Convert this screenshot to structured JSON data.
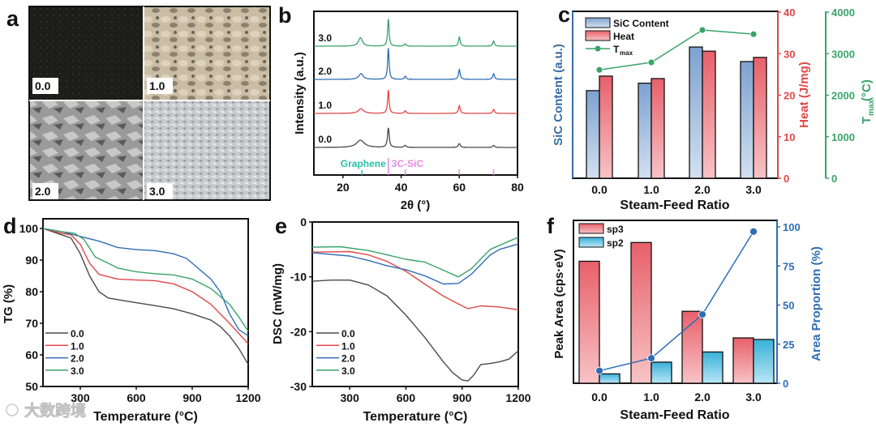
{
  "panel_labels": [
    "a",
    "b",
    "c",
    "d",
    "e",
    "f"
  ],
  "photos": {
    "labels": [
      "0.0",
      "1.0",
      "2.0",
      "3.0"
    ]
  },
  "watermark": {
    "text": "大数跨境"
  },
  "colors": {
    "s0": "#4a4a4a",
    "s1": "#e04848",
    "s2": "#2f6db5",
    "s3": "#3aa36a",
    "blue_axis": "#3a6ea5",
    "red_axis": "#e04848",
    "green_axis": "#3aa36a",
    "cyan": "#2ab0c8",
    "teal": "#2bbfa8",
    "pink": "#e58ae0"
  },
  "chart_data": [
    {
      "id": "b",
      "type": "line",
      "xlabel": "2θ (°)",
      "ylabel": "Intensity (a.u.)",
      "xlim": [
        10,
        80
      ],
      "xticks": [
        "20",
        "40",
        "60",
        "80"
      ],
      "reference": {
        "graphene_label": "Graphene",
        "sic_label": "3C-SiC",
        "graphene_peaks": [
          26.5
        ],
        "sic_peaks": [
          35.6,
          41.4,
          60.0,
          71.8
        ]
      },
      "series": [
        {
          "name": "0.0",
          "peaks": [
            [
              26.0,
              0.28,
              1.6
            ],
            [
              35.6,
              0.75,
              0.35
            ],
            [
              41.4,
              0.08,
              0.4
            ],
            [
              60.0,
              0.15,
              0.4
            ],
            [
              71.8,
              0.08,
              0.4
            ]
          ]
        },
        {
          "name": "1.0",
          "peaks": [
            [
              26.2,
              0.18,
              1.1
            ],
            [
              35.6,
              0.9,
              0.3
            ],
            [
              41.4,
              0.1,
              0.35
            ],
            [
              60.0,
              0.3,
              0.35
            ],
            [
              71.8,
              0.16,
              0.35
            ]
          ]
        },
        {
          "name": "2.0",
          "peaks": [
            [
              26.2,
              0.22,
              0.9
            ],
            [
              35.6,
              1.2,
              0.3
            ],
            [
              41.4,
              0.12,
              0.35
            ],
            [
              60.0,
              0.38,
              0.35
            ],
            [
              71.8,
              0.22,
              0.35
            ]
          ]
        },
        {
          "name": "3.0",
          "peaks": [
            [
              26.0,
              0.33,
              0.8
            ],
            [
              35.6,
              1.05,
              0.3
            ],
            [
              41.4,
              0.09,
              0.35
            ],
            [
              60.0,
              0.35,
              0.35
            ],
            [
              71.8,
              0.2,
              0.35
            ]
          ]
        }
      ]
    },
    {
      "id": "c",
      "type": "bar",
      "categories": [
        "0.0",
        "1.0",
        "2.0",
        "3.0"
      ],
      "xlabel": "Steam-Feed Ratio",
      "ylabel_left": "SiC Content (a.u.)",
      "ylabel_right": "Heat (J/mg)",
      "ylabel_right2": "T",
      "ylabel_right2_sub": "max",
      "ylabel_right2_unit": " (°C)",
      "heat_ylim": [
        0,
        40
      ],
      "heat_ticks": [
        "0",
        "10",
        "20",
        "30",
        "40"
      ],
      "tmax_ylim": [
        0,
        4000
      ],
      "tmax_ticks": [
        "0",
        "1000",
        "2000",
        "3000",
        "4000"
      ],
      "series": [
        {
          "name": "SiC Content",
          "values": [
            21.1,
            22.9,
            31.6,
            28.1
          ]
        },
        {
          "name": "Heat",
          "values": [
            24.6,
            24.0,
            30.6,
            29.1
          ]
        },
        {
          "name": "T",
          "sub": "max",
          "values": [
            2610,
            2790,
            3570,
            3470
          ]
        }
      ],
      "legend": "top-left"
    },
    {
      "id": "d",
      "type": "line",
      "xlabel": "Temperature (°C)",
      "ylabel": "TG (%)",
      "xlim": [
        100,
        1200
      ],
      "ylim": [
        50,
        100
      ],
      "xticks": [
        "300",
        "600",
        "900",
        "1200"
      ],
      "yticks": [
        "50",
        "60",
        "70",
        "80",
        "90",
        "100"
      ],
      "legend": "bottom-left",
      "series": [
        {
          "name": "0.0",
          "points": [
            [
              100,
              100
            ],
            [
              200,
              98
            ],
            [
              250,
              97
            ],
            [
              300,
              92
            ],
            [
              350,
              85
            ],
            [
              400,
              80
            ],
            [
              450,
              78
            ],
            [
              500,
              77.5
            ],
            [
              600,
              76.5
            ],
            [
              700,
              75.6
            ],
            [
              800,
              74.6
            ],
            [
              900,
              73
            ],
            [
              1000,
              71
            ],
            [
              1050,
              69
            ],
            [
              1100,
              66
            ],
            [
              1150,
              62
            ],
            [
              1200,
              57
            ]
          ]
        },
        {
          "name": "1.0",
          "points": [
            [
              100,
              100
            ],
            [
              200,
              98.5
            ],
            [
              250,
              98
            ],
            [
              300,
              95
            ],
            [
              350,
              89
            ],
            [
              400,
              85.5
            ],
            [
              500,
              84
            ],
            [
              600,
              83.7
            ],
            [
              700,
              83.5
            ],
            [
              800,
              82.5
            ],
            [
              900,
              80
            ],
            [
              1000,
              76
            ],
            [
              1100,
              70
            ],
            [
              1200,
              63.5
            ]
          ]
        },
        {
          "name": "2.0",
          "points": [
            [
              100,
              100
            ],
            [
              200,
              99
            ],
            [
              300,
              97.5
            ],
            [
              400,
              96
            ],
            [
              500,
              94
            ],
            [
              600,
              93.3
            ],
            [
              700,
              93
            ],
            [
              800,
              92
            ],
            [
              870,
              90.5
            ],
            [
              900,
              89
            ],
            [
              1000,
              84
            ],
            [
              1050,
              80
            ],
            [
              1100,
              73
            ],
            [
              1150,
              68
            ],
            [
              1200,
              66
            ]
          ]
        },
        {
          "name": "3.0",
          "points": [
            [
              100,
              100
            ],
            [
              200,
              99
            ],
            [
              270,
              98.5
            ],
            [
              320,
              96.5
            ],
            [
              380,
              91
            ],
            [
              450,
              89
            ],
            [
              500,
              87.5
            ],
            [
              600,
              86.3
            ],
            [
              700,
              85.7
            ],
            [
              800,
              85.3
            ],
            [
              900,
              84
            ],
            [
              1000,
              81
            ],
            [
              1050,
              78.5
            ],
            [
              1100,
              76
            ],
            [
              1150,
              72
            ],
            [
              1200,
              67.5
            ]
          ]
        }
      ]
    },
    {
      "id": "e",
      "type": "line",
      "xlabel": "Temperature (°C)",
      "ylabel": "DSC (mW/mg)",
      "xlim": [
        100,
        1200
      ],
      "ylim": [
        -30,
        0
      ],
      "xticks": [
        "300",
        "600",
        "900",
        "1200"
      ],
      "yticks": [
        "-30",
        "-20",
        "-10",
        "0"
      ],
      "legend": "bottom-left",
      "series": [
        {
          "name": "0.0",
          "points": [
            [
              100,
              -10.8
            ],
            [
              200,
              -10.6
            ],
            [
              300,
              -10.6
            ],
            [
              400,
              -11.5
            ],
            [
              500,
              -13.5
            ],
            [
              600,
              -17
            ],
            [
              700,
              -21
            ],
            [
              800,
              -25.5
            ],
            [
              850,
              -27.5
            ],
            [
              900,
              -28.8
            ],
            [
              930,
              -29
            ],
            [
              960,
              -28
            ],
            [
              1000,
              -26
            ],
            [
              1050,
              -25.8
            ],
            [
              1100,
              -25.5
            ],
            [
              1150,
              -25
            ],
            [
              1200,
              -23.5
            ]
          ]
        },
        {
          "name": "1.0",
          "points": [
            [
              100,
              -5.5
            ],
            [
              300,
              -5.4
            ],
            [
              400,
              -6
            ],
            [
              500,
              -7.2
            ],
            [
              600,
              -9
            ],
            [
              700,
              -11.3
            ],
            [
              800,
              -13.5
            ],
            [
              900,
              -15.3
            ],
            [
              930,
              -15.8
            ],
            [
              1000,
              -15.3
            ],
            [
              1100,
              -15.5
            ],
            [
              1200,
              -16
            ]
          ]
        },
        {
          "name": "2.0",
          "points": [
            [
              100,
              -5.6
            ],
            [
              300,
              -6.2
            ],
            [
              400,
              -7
            ],
            [
              500,
              -8
            ],
            [
              600,
              -8.7
            ],
            [
              700,
              -9.8
            ],
            [
              800,
              -11.3
            ],
            [
              880,
              -11.2
            ],
            [
              950,
              -9.5
            ],
            [
              1050,
              -6
            ],
            [
              1100,
              -5
            ],
            [
              1200,
              -4
            ]
          ]
        },
        {
          "name": "3.0",
          "points": [
            [
              100,
              -4.6
            ],
            [
              250,
              -4.5
            ],
            [
              400,
              -5.2
            ],
            [
              500,
              -6
            ],
            [
              600,
              -6.8
            ],
            [
              700,
              -7.3
            ],
            [
              800,
              -8.8
            ],
            [
              880,
              -10
            ],
            [
              950,
              -8.5
            ],
            [
              1050,
              -5
            ],
            [
              1150,
              -3.5
            ],
            [
              1200,
              -2.8
            ]
          ]
        }
      ]
    },
    {
      "id": "f",
      "type": "bar",
      "categories": [
        "0.0",
        "1.0",
        "2.0",
        "3.0"
      ],
      "xlabel": "Steam-Feed Ratio",
      "ylabel_left": "Peak Area (cps·eV)",
      "ylabel_right": "Area Proportion (%)",
      "right_ylim": [
        0,
        100
      ],
      "right_ticks": [
        "0",
        "25",
        "50",
        "75",
        "100"
      ],
      "series": [
        {
          "name": "sp3",
          "values": [
            78,
            90,
            46,
            29
          ]
        },
        {
          "name": "sp2",
          "values": [
            6,
            13.5,
            20,
            28
          ]
        },
        {
          "name": "area_proportion",
          "values": [
            8,
            16,
            44,
            97
          ]
        }
      ],
      "legend": "top-left"
    }
  ]
}
